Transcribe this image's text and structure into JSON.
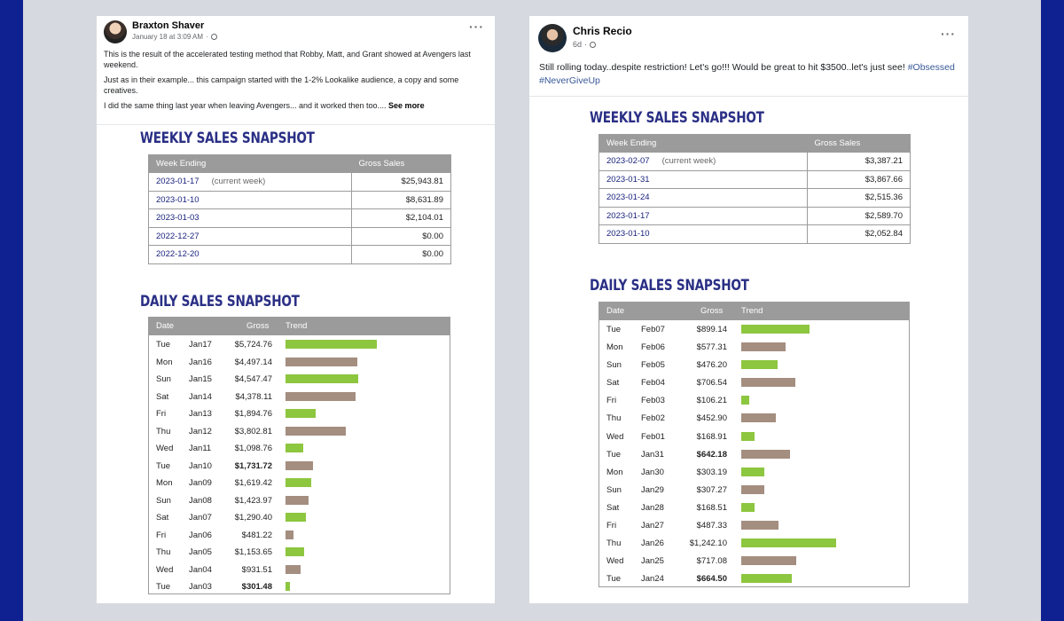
{
  "colors": {
    "frame": "#d6d9df",
    "border": "#0f2190",
    "up": "#8dc63f",
    "down": "#a48e80",
    "title": "#2a2f85"
  },
  "post1": {
    "author": "Braxton Shaver",
    "time": "January 18 at 3:09 AM",
    "dots": "···",
    "paragraphs": [
      "This is the result of the accelerated testing method that Robby, Matt, and Grant showed at Avengers last weekend.",
      "Just as in their example... this campaign started with the 1-2% Lookalike audience, a copy and some creatives.",
      "I did the same thing last year when leaving Avengers... and it worked then too...."
    ],
    "see_more": "See more",
    "weekly_title": "WEEKLY SALES SNAPSHOT",
    "daily_title": "DAILY SALES SNAPSHOT",
    "weekly_headers": [
      "Week Ending",
      "Gross Sales"
    ],
    "current_week": "(current week)",
    "weekly": [
      {
        "date": "2023-01-17",
        "amount": "$25,943.81"
      },
      {
        "date": "2023-01-10",
        "amount": "$8,631.89"
      },
      {
        "date": "2023-01-03",
        "amount": "$2,104.01"
      },
      {
        "date": "2022-12-27",
        "amount": "$0.00"
      },
      {
        "date": "2022-12-20",
        "amount": "$0.00"
      }
    ],
    "daily_headers": [
      "Date",
      "Gross",
      "Trend"
    ],
    "daily": [
      {
        "day": "Tue",
        "date": "Jan17",
        "amount": "$5,724.76",
        "value": 5724.76,
        "trend": "up",
        "bold": false
      },
      {
        "day": "Mon",
        "date": "Jan16",
        "amount": "$4,497.14",
        "value": 4497.14,
        "trend": "down",
        "bold": false
      },
      {
        "day": "Sun",
        "date": "Jan15",
        "amount": "$4,547.47",
        "value": 4547.47,
        "trend": "up",
        "bold": false
      },
      {
        "day": "Sat",
        "date": "Jan14",
        "amount": "$4,378.11",
        "value": 4378.11,
        "trend": "down",
        "bold": false
      },
      {
        "day": "Fri",
        "date": "Jan13",
        "amount": "$1,894.76",
        "value": 1894.76,
        "trend": "up",
        "bold": false
      },
      {
        "day": "Thu",
        "date": "Jan12",
        "amount": "$3,802.81",
        "value": 3802.81,
        "trend": "down",
        "bold": false
      },
      {
        "day": "Wed",
        "date": "Jan11",
        "amount": "$1,098.76",
        "value": 1098.76,
        "trend": "up",
        "bold": false
      },
      {
        "day": "Tue",
        "date": "Jan10",
        "amount": "$1,731.72",
        "value": 1731.72,
        "trend": "down",
        "bold": true
      },
      {
        "day": "Mon",
        "date": "Jan09",
        "amount": "$1,619.42",
        "value": 1619.42,
        "trend": "up",
        "bold": false
      },
      {
        "day": "Sun",
        "date": "Jan08",
        "amount": "$1,423.97",
        "value": 1423.97,
        "trend": "down",
        "bold": false
      },
      {
        "day": "Sat",
        "date": "Jan07",
        "amount": "$1,290.40",
        "value": 1290.4,
        "trend": "up",
        "bold": false
      },
      {
        "day": "Fri",
        "date": "Jan06",
        "amount": "$481.22",
        "value": 481.22,
        "trend": "down",
        "bold": false
      },
      {
        "day": "Thu",
        "date": "Jan05",
        "amount": "$1,153.65",
        "value": 1153.65,
        "trend": "up",
        "bold": false
      },
      {
        "day": "Wed",
        "date": "Jan04",
        "amount": "$931.51",
        "value": 931.51,
        "trend": "down",
        "bold": false
      },
      {
        "day": "Tue",
        "date": "Jan03",
        "amount": "$301.48",
        "value": 301.48,
        "trend": "up",
        "bold": true
      }
    ]
  },
  "post2": {
    "author": "Chris Recio",
    "time": "6d",
    "dots": "···",
    "text": "Still rolling today..despite restriction! Let's go!!! Would be great to hit $3500..let's just see!",
    "hashtags": [
      "#Obsessed",
      "#NeverGiveUp"
    ],
    "weekly_title": "WEEKLY SALES SNAPSHOT",
    "daily_title": "DAILY SALES SNAPSHOT",
    "weekly_headers": [
      "Week Ending",
      "Gross Sales"
    ],
    "current_week": "(current week)",
    "weekly": [
      {
        "date": "2023-02-07",
        "amount": "$3,387.21"
      },
      {
        "date": "2023-01-31",
        "amount": "$3,867.66"
      },
      {
        "date": "2023-01-24",
        "amount": "$2,515.36"
      },
      {
        "date": "2023-01-17",
        "amount": "$2,589.70"
      },
      {
        "date": "2023-01-10",
        "amount": "$2,052.84"
      }
    ],
    "daily_headers": [
      "Date",
      "Gross",
      "Trend"
    ],
    "daily": [
      {
        "day": "Tue",
        "date": "Feb07",
        "amount": "$899.14",
        "value": 899.14,
        "trend": "up",
        "bold": false
      },
      {
        "day": "Mon",
        "date": "Feb06",
        "amount": "$577.31",
        "value": 577.31,
        "trend": "down",
        "bold": false
      },
      {
        "day": "Sun",
        "date": "Feb05",
        "amount": "$476.20",
        "value": 476.2,
        "trend": "up",
        "bold": false
      },
      {
        "day": "Sat",
        "date": "Feb04",
        "amount": "$706.54",
        "value": 706.54,
        "trend": "down",
        "bold": false
      },
      {
        "day": "Fri",
        "date": "Feb03",
        "amount": "$106.21",
        "value": 106.21,
        "trend": "up",
        "bold": false
      },
      {
        "day": "Thu",
        "date": "Feb02",
        "amount": "$452.90",
        "value": 452.9,
        "trend": "down",
        "bold": false
      },
      {
        "day": "Wed",
        "date": "Feb01",
        "amount": "$168.91",
        "value": 168.91,
        "trend": "up",
        "bold": false
      },
      {
        "day": "Tue",
        "date": "Jan31",
        "amount": "$642.18",
        "value": 642.18,
        "trend": "down",
        "bold": true
      },
      {
        "day": "Mon",
        "date": "Jan30",
        "amount": "$303.19",
        "value": 303.19,
        "trend": "up",
        "bold": false
      },
      {
        "day": "Sun",
        "date": "Jan29",
        "amount": "$307.27",
        "value": 307.27,
        "trend": "down",
        "bold": false
      },
      {
        "day": "Sat",
        "date": "Jan28",
        "amount": "$168.51",
        "value": 168.51,
        "trend": "up",
        "bold": false
      },
      {
        "day": "Fri",
        "date": "Jan27",
        "amount": "$487.33",
        "value": 487.33,
        "trend": "down",
        "bold": false
      },
      {
        "day": "Thu",
        "date": "Jan26",
        "amount": "$1,242.10",
        "value": 1242.1,
        "trend": "up",
        "bold": false
      },
      {
        "day": "Wed",
        "date": "Jan25",
        "amount": "$717.08",
        "value": 717.08,
        "trend": "down",
        "bold": false
      },
      {
        "day": "Tue",
        "date": "Jan24",
        "amount": "$664.50",
        "value": 664.5,
        "trend": "up",
        "bold": true
      }
    ]
  }
}
